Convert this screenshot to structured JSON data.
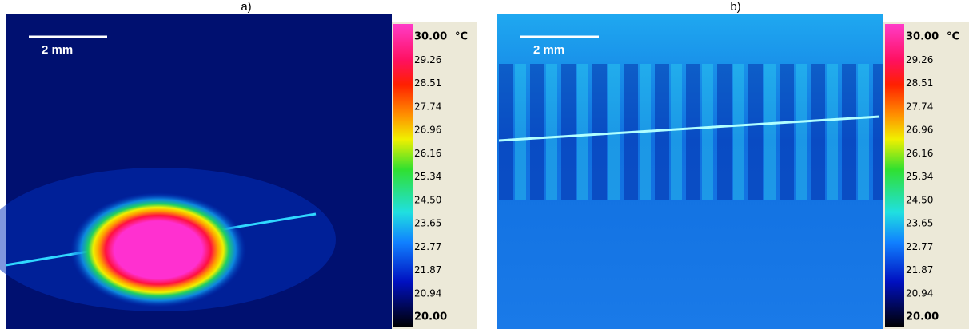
{
  "panels": [
    {
      "label": "a)",
      "scale_bar": "2 mm",
      "colorbar": {
        "unit": "°C",
        "labels": [
          "30.00",
          "29.26",
          "28.51",
          "27.74",
          "26.96",
          "26.16",
          "25.34",
          "24.50",
          "23.65",
          "22.77",
          "21.87",
          "20.94",
          "20.00"
        ]
      }
    },
    {
      "label": "b)",
      "scale_bar": "2 mm",
      "colorbar": {
        "unit": "°C",
        "labels": [
          "30.00",
          "29.26",
          "28.51",
          "27.74",
          "26.96",
          "26.16",
          "25.34",
          "24.50",
          "23.65",
          "22.77",
          "21.87",
          "20.94",
          "20.00"
        ]
      }
    }
  ]
}
